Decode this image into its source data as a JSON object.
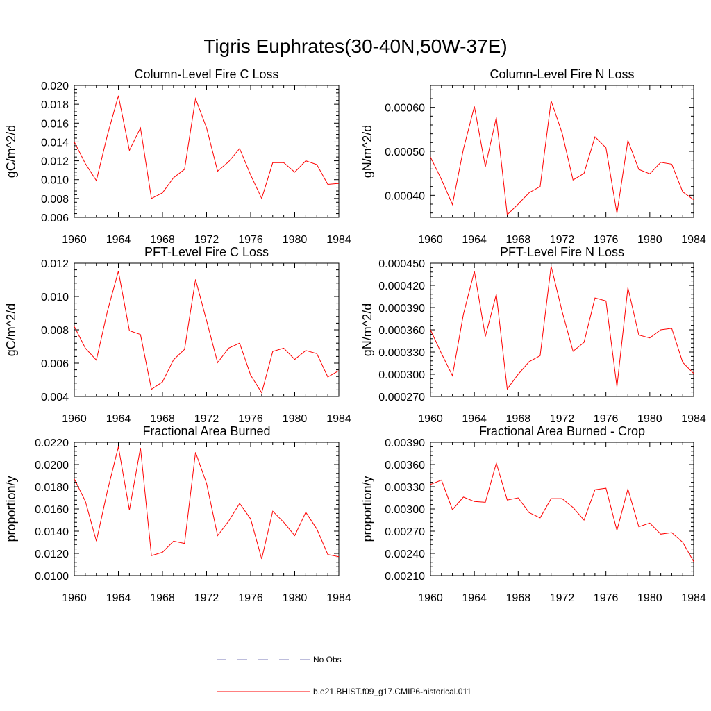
{
  "figure": {
    "title": "Tigris Euphrates(30-40N,50W-37E)"
  },
  "legend": {
    "obs_label": "No Obs",
    "obs_color": "#7b7bb8",
    "model_label": "b.e21.BHIST.f09_g17.CMIP6-historical.011",
    "model_color": "#ff0000"
  },
  "chart_data": [
    {
      "type": "line",
      "title": "Column-Level Fire C Loss",
      "ylabel": "gC/m^2/d",
      "xlim": [
        1960,
        1984
      ],
      "ylim": [
        0.006,
        0.02
      ],
      "x_ticks": [
        "1960",
        "1964",
        "1968",
        "1972",
        "1976",
        "1980",
        "1984"
      ],
      "y_ticks": [
        "0.006",
        "0.008",
        "0.010",
        "0.012",
        "0.014",
        "0.016",
        "0.018",
        "0.020"
      ],
      "y_tick_values": [
        0.006,
        0.008,
        0.01,
        0.012,
        0.014,
        0.016,
        0.018,
        0.02
      ],
      "x": [
        1960,
        1961,
        1962,
        1963,
        1964,
        1965,
        1966,
        1967,
        1968,
        1969,
        1970,
        1971,
        1972,
        1973,
        1974,
        1975,
        1976,
        1977,
        1978,
        1979,
        1980,
        1981,
        1982,
        1983,
        1984
      ],
      "series": [
        {
          "values": [
            0.014,
            0.0117,
            0.0099,
            0.0147,
            0.0189,
            0.0131,
            0.0155,
            0.008,
            0.0086,
            0.0102,
            0.0111,
            0.0186,
            0.0155,
            0.0109,
            0.0119,
            0.0133,
            0.0105,
            0.008,
            0.0118,
            0.0118,
            0.0108,
            0.012,
            0.0116,
            0.0095,
            0.0096
          ]
        }
      ]
    },
    {
      "type": "line",
      "title": "Column-Level Fire N Loss",
      "ylabel": "gN/m^2/d",
      "xlim": [
        1960,
        1984
      ],
      "ylim": [
        0.00035,
        0.00065
      ],
      "x_ticks": [
        "1960",
        "1964",
        "1968",
        "1972",
        "1976",
        "1980",
        "1984"
      ],
      "y_ticks": [
        "0.00040",
        "0.00050",
        "0.00060"
      ],
      "y_tick_values": [
        0.0004,
        0.0005,
        0.0006
      ],
      "x": [
        1960,
        1961,
        1962,
        1963,
        1964,
        1965,
        1966,
        1967,
        1968,
        1969,
        1970,
        1971,
        1972,
        1973,
        1974,
        1975,
        1976,
        1977,
        1978,
        1979,
        1980,
        1981,
        1982,
        1983,
        1984
      ],
      "series": [
        {
          "values": [
            0.000487,
            0.000436,
            0.000379,
            0.000505,
            0.000602,
            0.000465,
            0.000577,
            0.000356,
            0.00038,
            0.000406,
            0.00042,
            0.000615,
            0.000542,
            0.000435,
            0.00045,
            0.000533,
            0.000508,
            0.000359,
            0.000525,
            0.000459,
            0.000449,
            0.000475,
            0.000471,
            0.000408,
            0.00039
          ]
        }
      ]
    },
    {
      "type": "line",
      "title": "PFT-Level Fire C Loss",
      "ylabel": "gC/m^2/d",
      "xlim": [
        1960,
        1984
      ],
      "ylim": [
        0.004,
        0.012
      ],
      "x_ticks": [
        "1960",
        "1964",
        "1968",
        "1972",
        "1976",
        "1980",
        "1984"
      ],
      "y_ticks": [
        "0.004",
        "0.006",
        "0.008",
        "0.010",
        "0.012"
      ],
      "y_tick_values": [
        0.004,
        0.006,
        0.008,
        0.01,
        0.012
      ],
      "x": [
        1960,
        1961,
        1962,
        1963,
        1964,
        1965,
        1966,
        1967,
        1968,
        1969,
        1970,
        1971,
        1972,
        1973,
        1974,
        1975,
        1976,
        1977,
        1978,
        1979,
        1980,
        1981,
        1982,
        1983,
        1984
      ],
      "series": [
        {
          "values": [
            0.0082,
            0.0069,
            0.00618,
            0.0091,
            0.01152,
            0.00795,
            0.00772,
            0.00443,
            0.00487,
            0.0062,
            0.00683,
            0.01102,
            0.00855,
            0.00603,
            0.0069,
            0.0072,
            0.00528,
            0.00422,
            0.0067,
            0.0069,
            0.00622,
            0.00676,
            0.00657,
            0.00517,
            0.00555
          ]
        }
      ]
    },
    {
      "type": "line",
      "title": "PFT-Level Fire N Loss",
      "ylabel": "gN/m^2/d",
      "xlim": [
        1960,
        1984
      ],
      "ylim": [
        0.00027,
        0.00045
      ],
      "x_ticks": [
        "1960",
        "1964",
        "1968",
        "1972",
        "1976",
        "1980",
        "1984"
      ],
      "y_ticks": [
        "0.000270",
        "0.000300",
        "0.000330",
        "0.000360",
        "0.000390",
        "0.000420",
        "0.000450"
      ],
      "y_tick_values": [
        0.00027,
        0.0003,
        0.00033,
        0.00036,
        0.00039,
        0.00042,
        0.00045
      ],
      "x": [
        1960,
        1961,
        1962,
        1963,
        1964,
        1965,
        1966,
        1967,
        1968,
        1969,
        1970,
        1971,
        1972,
        1973,
        1974,
        1975,
        1976,
        1977,
        1978,
        1979,
        1980,
        1981,
        1982,
        1983,
        1984
      ],
      "series": [
        {
          "values": [
            0.00036,
            0.000328,
            0.000298,
            0.000381,
            0.000439,
            0.000351,
            0.000408,
            0.00028,
            0.0003,
            0.000317,
            0.000325,
            0.000446,
            0.000385,
            0.000331,
            0.000343,
            0.000403,
            0.000399,
            0.000283,
            0.000417,
            0.000353,
            0.000349,
            0.00036,
            0.000362,
            0.000316,
            0.000301
          ]
        }
      ]
    },
    {
      "type": "line",
      "title": "Fractional Area Burned",
      "ylabel": "proportion/y",
      "xlim": [
        1960,
        1984
      ],
      "ylim": [
        0.01,
        0.022
      ],
      "x_ticks": [
        "1960",
        "1964",
        "1968",
        "1972",
        "1976",
        "1980",
        "1984"
      ],
      "y_ticks": [
        "0.0100",
        "0.0120",
        "0.0140",
        "0.0160",
        "0.0180",
        "0.0200",
        "0.0220"
      ],
      "y_tick_values": [
        0.01,
        0.012,
        0.014,
        0.016,
        0.018,
        0.02,
        0.022
      ],
      "x": [
        1960,
        1961,
        1962,
        1963,
        1964,
        1965,
        1966,
        1967,
        1968,
        1969,
        1970,
        1971,
        1972,
        1973,
        1974,
        1975,
        1976,
        1977,
        1978,
        1979,
        1980,
        1981,
        1982,
        1983,
        1984
      ],
      "series": [
        {
          "values": [
            0.0187,
            0.0167,
            0.0131,
            0.0176,
            0.0216,
            0.0159,
            0.0215,
            0.0118,
            0.0121,
            0.0131,
            0.0129,
            0.0211,
            0.0183,
            0.0136,
            0.0149,
            0.0165,
            0.0151,
            0.0115,
            0.0158,
            0.0148,
            0.0136,
            0.0157,
            0.0142,
            0.0119,
            0.0117
          ]
        }
      ]
    },
    {
      "type": "line",
      "title": "Fractional Area Burned - Crop",
      "ylabel": "proportion/y",
      "xlim": [
        1960,
        1984
      ],
      "ylim": [
        0.0021,
        0.0039
      ],
      "x_ticks": [
        "1960",
        "1964",
        "1968",
        "1972",
        "1976",
        "1980",
        "1984"
      ],
      "y_ticks": [
        "0.00210",
        "0.00240",
        "0.00270",
        "0.00300",
        "0.00330",
        "0.00360",
        "0.00390"
      ],
      "y_tick_values": [
        0.0021,
        0.0024,
        0.0027,
        0.003,
        0.0033,
        0.0036,
        0.0039
      ],
      "x": [
        1960,
        1961,
        1962,
        1963,
        1964,
        1965,
        1966,
        1967,
        1968,
        1969,
        1970,
        1971,
        1972,
        1973,
        1974,
        1975,
        1976,
        1977,
        1978,
        1979,
        1980,
        1981,
        1982,
        1983,
        1984
      ],
      "series": [
        {
          "values": [
            0.00333,
            0.00339,
            0.00299,
            0.00316,
            0.0031,
            0.00309,
            0.00362,
            0.00312,
            0.00315,
            0.00295,
            0.00288,
            0.00314,
            0.00314,
            0.00302,
            0.00285,
            0.00326,
            0.00328,
            0.00271,
            0.00327,
            0.00276,
            0.00281,
            0.00266,
            0.00268,
            0.00255,
            0.00229
          ]
        }
      ]
    }
  ]
}
